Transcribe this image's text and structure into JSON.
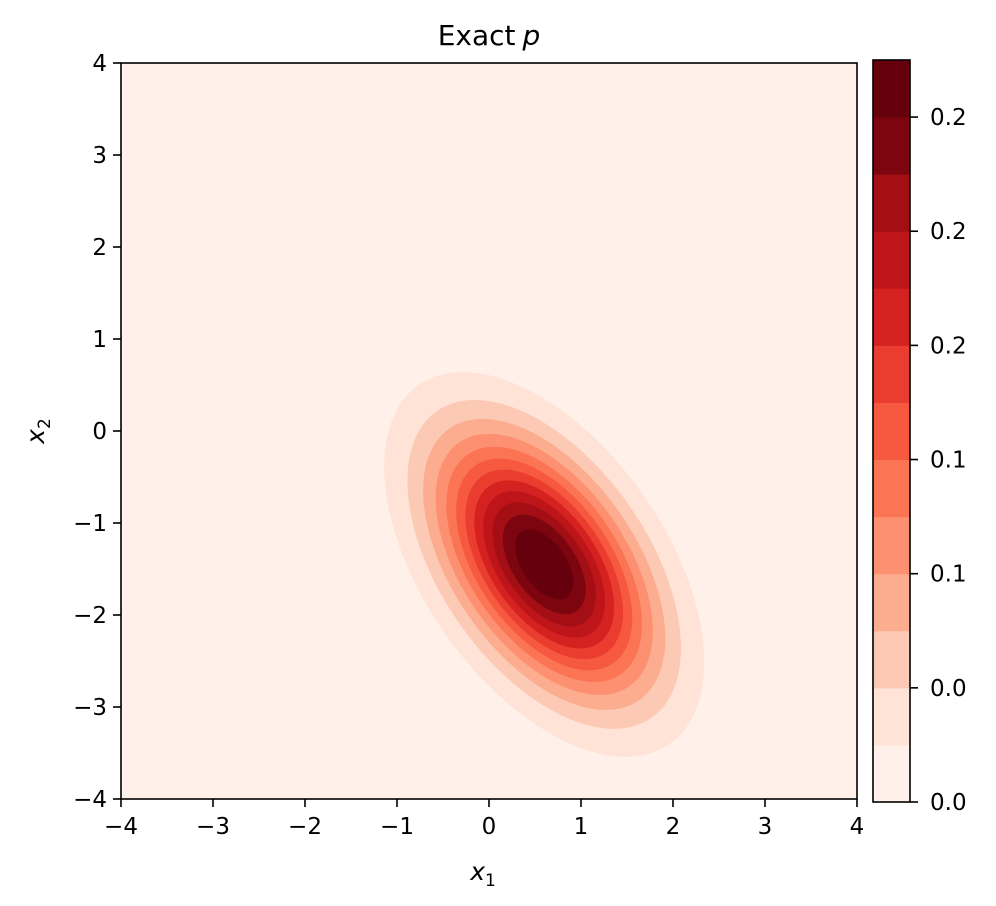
{
  "chart_data": {
    "type": "contourf",
    "title": "Exact",
    "title_symbol": "p",
    "xlabel": {
      "base": "x",
      "sub": "1"
    },
    "ylabel": {
      "base": "x",
      "sub": "2"
    },
    "xlim": [
      -4,
      4
    ],
    "ylim": [
      -4,
      4
    ],
    "xticks": [
      -4,
      -3,
      -2,
      -1,
      0,
      1,
      2,
      3,
      4
    ],
    "yticks": [
      -4,
      -3,
      -2,
      -1,
      0,
      1,
      2,
      3,
      4
    ],
    "xtick_labels": [
      "−4",
      "−3",
      "−2",
      "−1",
      "0",
      "1",
      "2",
      "3",
      "4"
    ],
    "ytick_labels": [
      "−4",
      "−3",
      "−2",
      "−1",
      "0",
      "1",
      "2",
      "3",
      "4"
    ],
    "distribution": {
      "mean": [
        0.6,
        -1.45
      ],
      "major_axis_angle_deg": -55,
      "sigma_major": 1.05,
      "sigma_minor": 0.58
    },
    "colormap": "Reds",
    "levels": [
      0.0,
      0.02,
      0.04,
      0.06,
      0.08,
      0.1,
      0.12,
      0.14,
      0.16,
      0.18,
      0.2,
      0.22,
      0.24,
      0.26
    ],
    "level_colors": [
      "#fff0e9",
      "#fee3d6",
      "#fcc9b4",
      "#fcad90",
      "#fc9070",
      "#fb7555",
      "#f65940",
      "#eb3d2f",
      "#d52221",
      "#be151a",
      "#a40f15",
      "#7c0510",
      "#67000d"
    ],
    "colorbar": {
      "ticks": [
        0.0,
        0.04,
        0.08,
        0.12,
        0.16,
        0.2,
        0.24
      ],
      "tick_labels": [
        "0.0",
        "0.0",
        "0.1",
        "0.1",
        "0.2",
        "0.2",
        "0.2"
      ]
    }
  }
}
